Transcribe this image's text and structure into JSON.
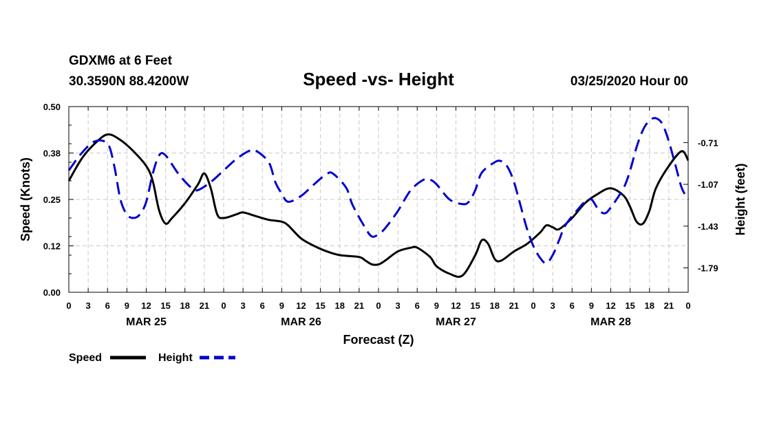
{
  "header": {
    "station": "GDXM6 at 6 Feet",
    "location": "30.3590N 88.4200W",
    "title": "Speed -vs- Height",
    "datetime": "03/25/2020 Hour 00"
  },
  "chart_data": {
    "type": "line",
    "title": "Speed -vs- Height",
    "xlabel": "Forecast (Z)",
    "ylabel_left": "Speed (Knots)",
    "ylabel_right": "Height (feet)",
    "x_range_hours": [
      0,
      96
    ],
    "x_tick_labels": [
      "0",
      "3",
      "6",
      "9",
      "12",
      "15",
      "18",
      "21",
      "0",
      "3",
      "6",
      "9",
      "12",
      "15",
      "18",
      "21",
      "0",
      "3",
      "6",
      "9",
      "12",
      "15",
      "18",
      "21",
      "0",
      "3",
      "6",
      "9",
      "12",
      "15",
      "18",
      "21",
      "0"
    ],
    "date_labels": [
      {
        "label": "MAR 25",
        "hour": 12
      },
      {
        "label": "MAR 26",
        "hour": 36
      },
      {
        "label": "MAR 27",
        "hour": 60
      },
      {
        "label": "MAR 28",
        "hour": 84
      }
    ],
    "y_left": {
      "min": 0.0,
      "max": 0.5,
      "ticks": [
        "0.00",
        "0.12",
        "0.25",
        "0.38",
        "0.50"
      ]
    },
    "y_right": {
      "min": -2.0,
      "max": -0.4,
      "ticks": [
        "-0.71",
        "-1.07",
        "-1.43",
        "-1.79"
      ]
    },
    "grid": true,
    "legend_position": "bottom-left",
    "series": [
      {
        "name": "Speed",
        "axis": "left",
        "color": "#000000",
        "style": "solid",
        "points": [
          [
            0,
            0.3
          ],
          [
            2,
            0.36
          ],
          [
            4,
            0.4
          ],
          [
            6,
            0.425
          ],
          [
            8,
            0.41
          ],
          [
            10,
            0.38
          ],
          [
            12,
            0.34
          ],
          [
            13,
            0.3
          ],
          [
            14,
            0.22
          ],
          [
            15,
            0.185
          ],
          [
            16,
            0.2
          ],
          [
            18,
            0.24
          ],
          [
            20,
            0.29
          ],
          [
            21,
            0.32
          ],
          [
            22,
            0.28
          ],
          [
            23,
            0.21
          ],
          [
            24,
            0.2
          ],
          [
            26,
            0.21
          ],
          [
            27,
            0.215
          ],
          [
            29,
            0.205
          ],
          [
            31,
            0.195
          ],
          [
            33,
            0.19
          ],
          [
            34,
            0.18
          ],
          [
            36,
            0.145
          ],
          [
            38,
            0.125
          ],
          [
            40,
            0.11
          ],
          [
            42,
            0.1
          ],
          [
            45,
            0.095
          ],
          [
            46,
            0.085
          ],
          [
            47,
            0.075
          ],
          [
            48,
            0.075
          ],
          [
            49,
            0.085
          ],
          [
            51,
            0.11
          ],
          [
            53,
            0.12
          ],
          [
            54,
            0.12
          ],
          [
            56,
            0.095
          ],
          [
            57,
            0.07
          ],
          [
            59,
            0.05
          ],
          [
            61,
            0.045
          ],
          [
            63,
            0.1
          ],
          [
            64,
            0.14
          ],
          [
            65,
            0.13
          ],
          [
            66,
            0.09
          ],
          [
            67,
            0.085
          ],
          [
            69,
            0.11
          ],
          [
            71,
            0.13
          ],
          [
            73,
            0.16
          ],
          [
            74,
            0.18
          ],
          [
            75,
            0.175
          ],
          [
            76,
            0.17
          ],
          [
            78,
            0.2
          ],
          [
            80,
            0.24
          ],
          [
            82,
            0.265
          ],
          [
            84,
            0.28
          ],
          [
            86,
            0.26
          ],
          [
            87,
            0.23
          ],
          [
            88,
            0.19
          ],
          [
            89,
            0.185
          ],
          [
            90,
            0.22
          ],
          [
            91,
            0.28
          ],
          [
            93,
            0.34
          ],
          [
            95,
            0.38
          ],
          [
            96,
            0.355
          ]
        ]
      },
      {
        "name": "Height",
        "axis": "right",
        "color": "#0000cc",
        "style": "dashed",
        "points": [
          [
            0,
            -0.95
          ],
          [
            2,
            -0.8
          ],
          [
            4,
            -0.7
          ],
          [
            6,
            -0.72
          ],
          [
            7,
            -0.9
          ],
          [
            8,
            -1.2
          ],
          [
            9,
            -1.33
          ],
          [
            10,
            -1.36
          ],
          [
            11,
            -1.33
          ],
          [
            12,
            -1.22
          ],
          [
            13,
            -0.98
          ],
          [
            14,
            -0.82
          ],
          [
            15,
            -0.82
          ],
          [
            17,
            -0.98
          ],
          [
            19,
            -1.1
          ],
          [
            20,
            -1.12
          ],
          [
            22,
            -1.05
          ],
          [
            24,
            -0.95
          ],
          [
            26,
            -0.85
          ],
          [
            28,
            -0.78
          ],
          [
            29,
            -0.78
          ],
          [
            31,
            -0.88
          ],
          [
            32,
            -1.05
          ],
          [
            33,
            -1.15
          ],
          [
            34,
            -1.22
          ],
          [
            36,
            -1.17
          ],
          [
            38,
            -1.07
          ],
          [
            40,
            -0.98
          ],
          [
            41,
            -0.98
          ],
          [
            43,
            -1.1
          ],
          [
            44,
            -1.25
          ],
          [
            46,
            -1.45
          ],
          [
            47,
            -1.52
          ],
          [
            48,
            -1.5
          ],
          [
            49,
            -1.45
          ],
          [
            51,
            -1.3
          ],
          [
            53,
            -1.12
          ],
          [
            55,
            -1.03
          ],
          [
            56,
            -1.03
          ],
          [
            57,
            -1.07
          ],
          [
            59,
            -1.2
          ],
          [
            61,
            -1.24
          ],
          [
            62,
            -1.22
          ],
          [
            63,
            -1.12
          ],
          [
            64,
            -0.97
          ],
          [
            66,
            -0.88
          ],
          [
            67,
            -0.87
          ],
          [
            68,
            -0.92
          ],
          [
            69,
            -1.05
          ],
          [
            70,
            -1.25
          ],
          [
            71,
            -1.45
          ],
          [
            72,
            -1.6
          ],
          [
            73,
            -1.7
          ],
          [
            74,
            -1.75
          ],
          [
            75,
            -1.68
          ],
          [
            76,
            -1.55
          ],
          [
            77,
            -1.42
          ],
          [
            79,
            -1.28
          ],
          [
            80,
            -1.22
          ],
          [
            81,
            -1.2
          ],
          [
            82,
            -1.28
          ],
          [
            83,
            -1.32
          ],
          [
            84,
            -1.27
          ],
          [
            86,
            -1.1
          ],
          [
            87,
            -0.95
          ],
          [
            88,
            -0.75
          ],
          [
            89,
            -0.6
          ],
          [
            90,
            -0.52
          ],
          [
            91,
            -0.5
          ],
          [
            92,
            -0.55
          ],
          [
            93,
            -0.7
          ],
          [
            94,
            -0.9
          ],
          [
            95,
            -1.1
          ],
          [
            96,
            -1.2
          ]
        ]
      }
    ]
  },
  "legend": {
    "speed_label": "Speed",
    "height_label": "Height"
  }
}
